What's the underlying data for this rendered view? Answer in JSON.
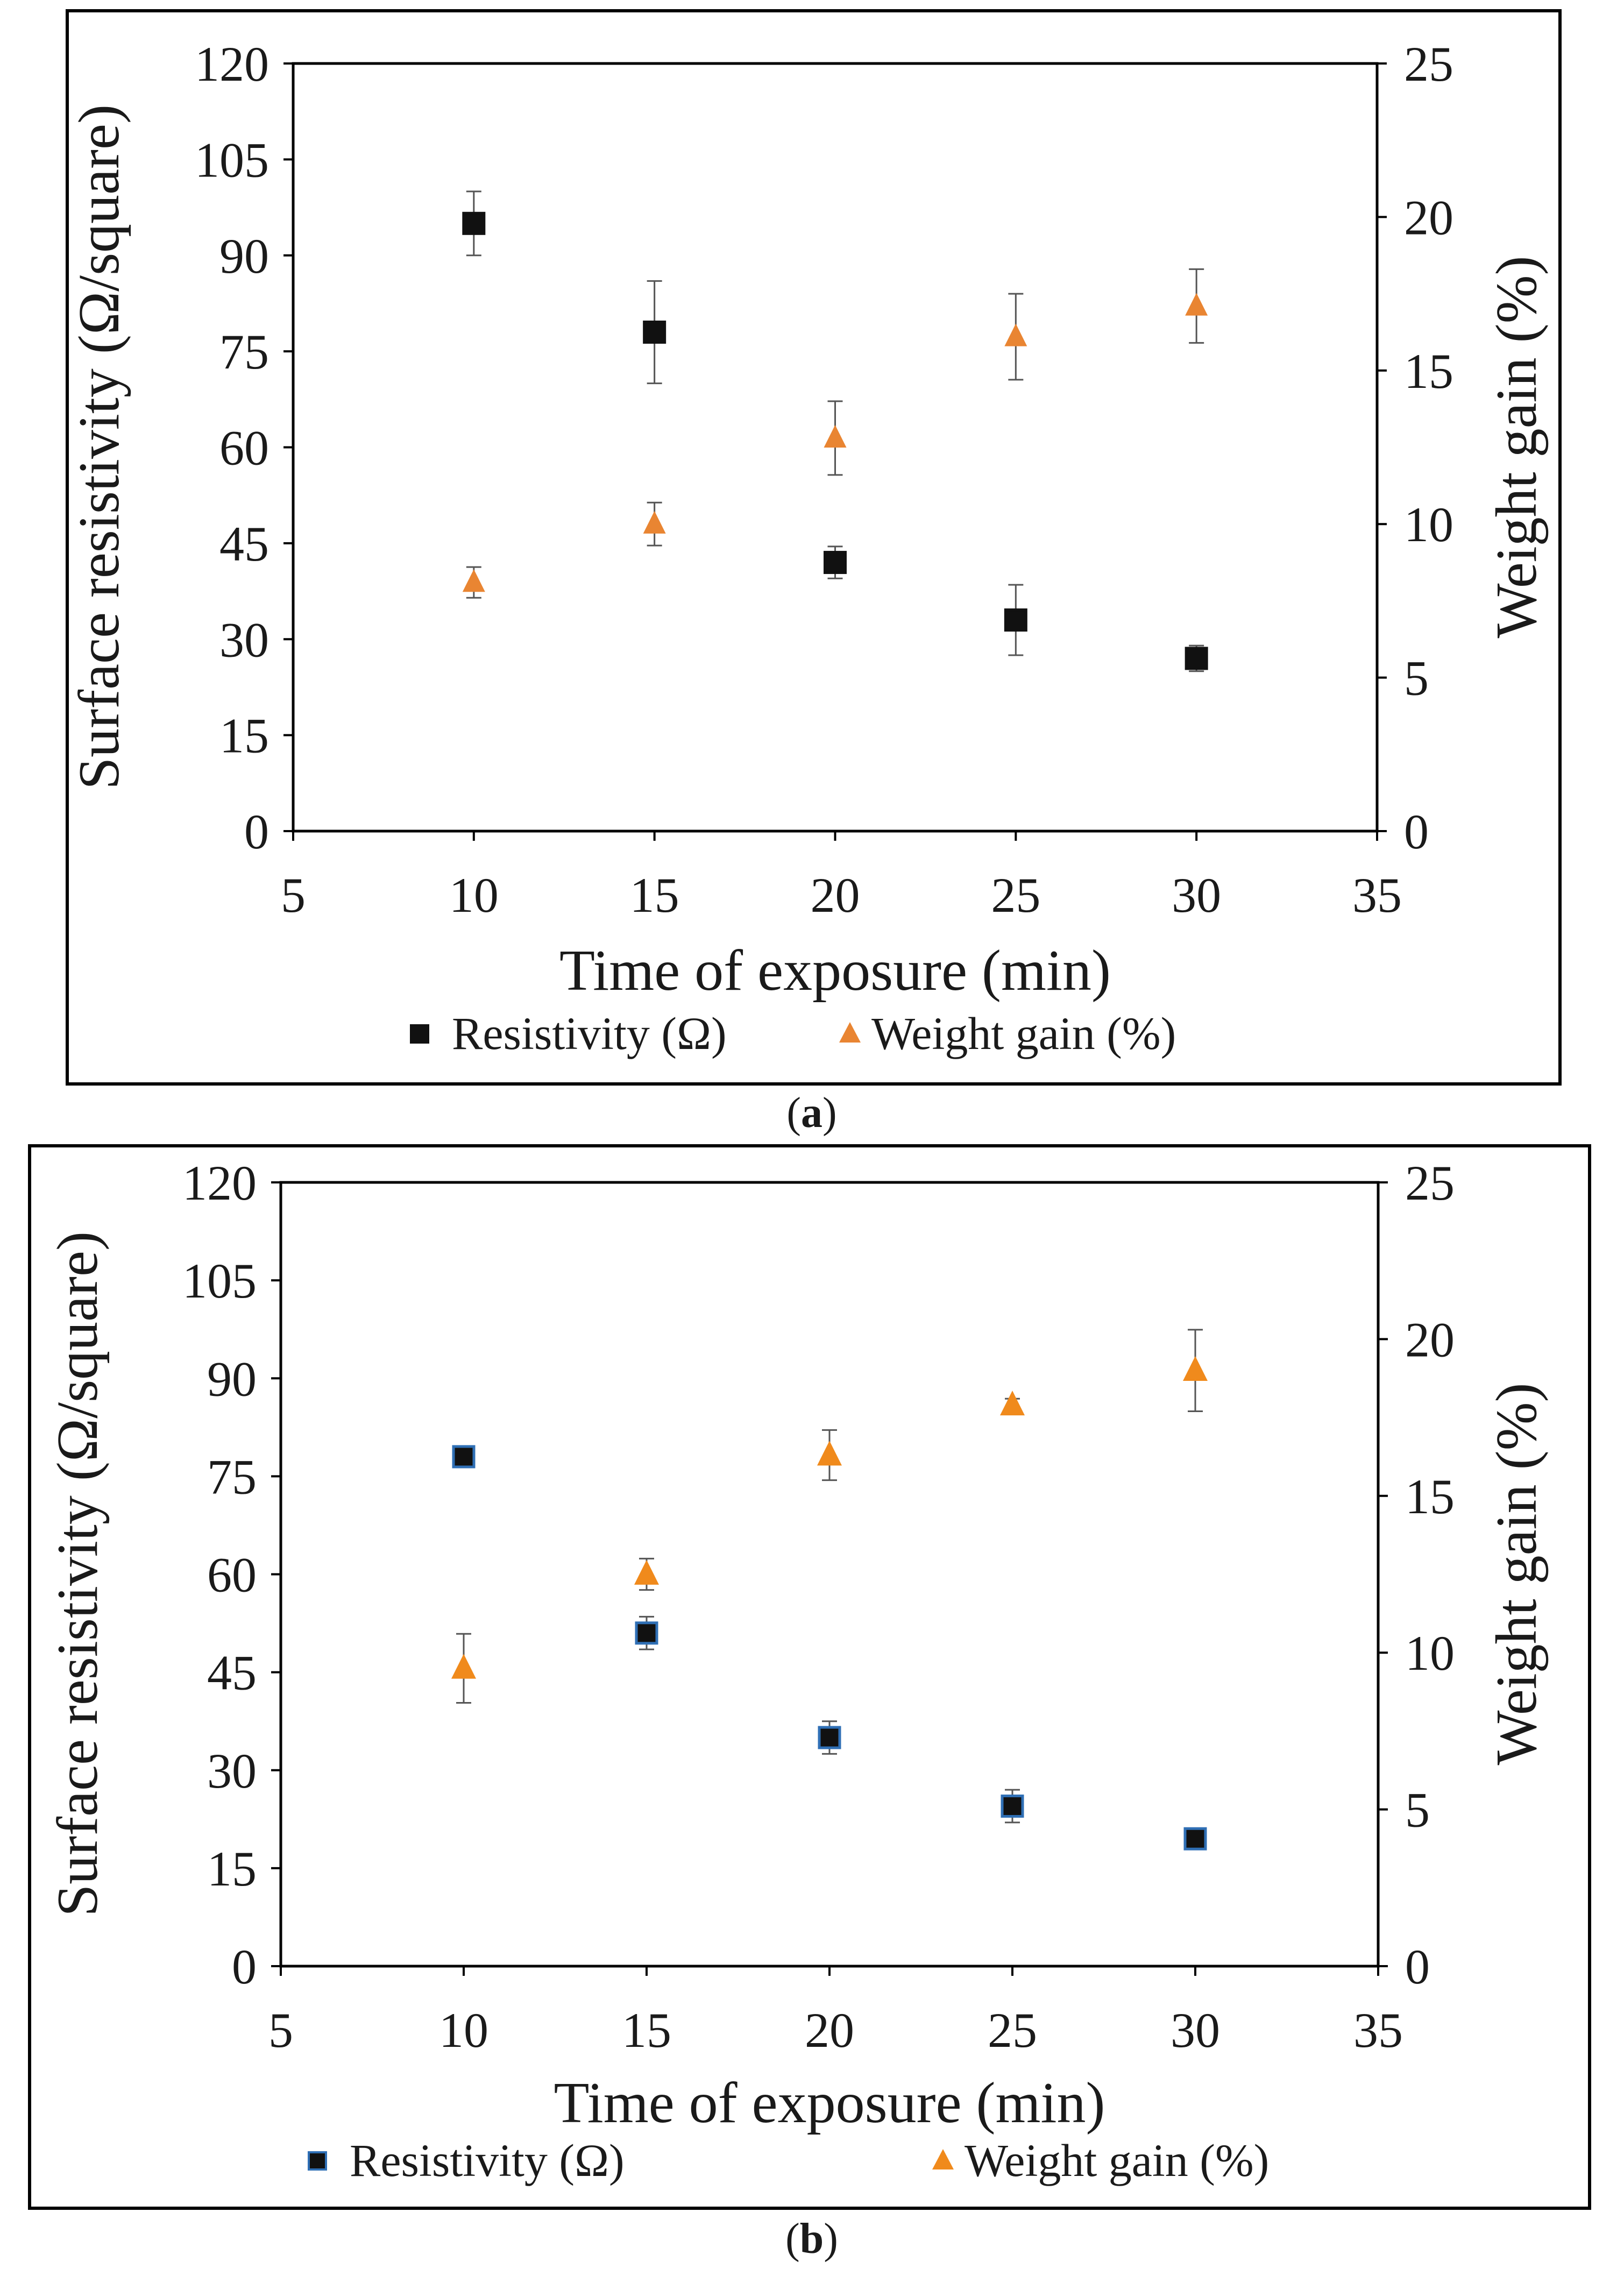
{
  "chart_data": [
    {
      "type": "scatter",
      "panel_label": "(a)",
      "xlabel": "Time of exposure (min)",
      "ylabel_left": "Surface resistivity (Ω/square)",
      "ylabel_right": "Weight gain (%)",
      "xlim": [
        5,
        35
      ],
      "ylim_left": [
        0,
        120
      ],
      "ylim_right": [
        0,
        25
      ],
      "xticks": [
        "5",
        "10",
        "15",
        "20",
        "25",
        "30",
        "35"
      ],
      "yticks_left": [
        "0",
        "15",
        "30",
        "45",
        "60",
        "75",
        "90",
        "105",
        "120"
      ],
      "yticks_right": [
        "0",
        "5",
        "10",
        "15",
        "20",
        "25"
      ],
      "grid": false,
      "legend": [
        "Resistivity (Ω)",
        "Weight gain (%)"
      ],
      "series": [
        {
          "name": "Resistivity (Ω)",
          "axis": "left",
          "marker": "square",
          "color": "#111111",
          "edge": "#111111",
          "x": [
            10,
            15,
            20,
            25,
            30
          ],
          "y": [
            95,
            78,
            42,
            33,
            27
          ],
          "err": [
            5,
            8,
            2.5,
            5.5,
            2
          ]
        },
        {
          "name": "Weight gain (%)",
          "axis": "right",
          "marker": "triangle",
          "color": "#e98532",
          "x": [
            10,
            15,
            20,
            25,
            30
          ],
          "y": [
            8.1,
            10,
            12.8,
            16.1,
            17.1
          ],
          "err": [
            0.5,
            0.7,
            1.2,
            1.4,
            1.2
          ]
        }
      ]
    },
    {
      "type": "scatter",
      "panel_label": "(b)",
      "xlabel": "Time of exposure (min)",
      "ylabel_left": "Surface resistivity (Ω/square)",
      "ylabel_right": "Weight gain (%)",
      "xlim": [
        5,
        35
      ],
      "ylim_left": [
        0,
        120
      ],
      "ylim_right": [
        0,
        25
      ],
      "xticks": [
        "5",
        "10",
        "15",
        "20",
        "25",
        "30",
        "35"
      ],
      "yticks_left": [
        "0",
        "15",
        "30",
        "45",
        "60",
        "75",
        "90",
        "105",
        "120"
      ],
      "yticks_right": [
        "0",
        "5",
        "10",
        "15",
        "20",
        "25"
      ],
      "grid": false,
      "legend": [
        "Resistivity (Ω)",
        "Weight gain (%)"
      ],
      "series": [
        {
          "name": "Resistivity (Ω)",
          "axis": "left",
          "marker": "square",
          "color": "#111111",
          "edge": "#2f6fb5",
          "x": [
            10,
            15,
            20,
            25,
            30
          ],
          "y": [
            78,
            51,
            35,
            24.5,
            19.5
          ],
          "err": [
            1.5,
            2.5,
            2.5,
            2.5,
            0.8
          ]
        },
        {
          "name": "Weight gain (%)",
          "axis": "right",
          "marker": "triangle",
          "color": "#f08a1c",
          "x": [
            10,
            15,
            20,
            25,
            30
          ],
          "y": [
            9.5,
            12.5,
            16.3,
            17.9,
            19
          ],
          "err": [
            1.1,
            0.5,
            0.8,
            0.2,
            1.3
          ]
        }
      ]
    }
  ]
}
